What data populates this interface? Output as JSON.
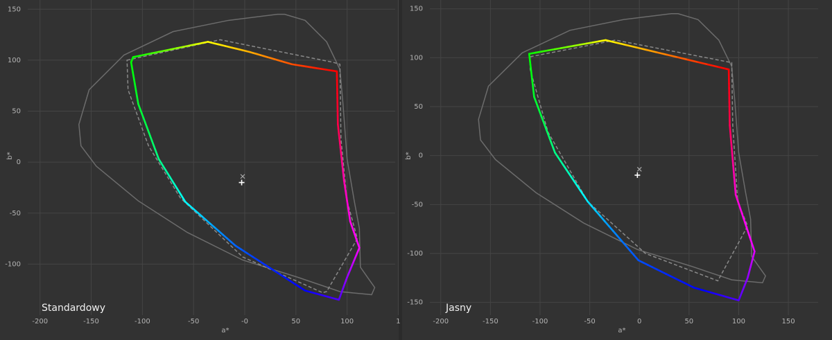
{
  "chart_data": [
    {
      "type": "gamut",
      "title": "Standardowy",
      "xlabel": "a*",
      "ylabel": "b*",
      "xlim": [
        -212,
        147
      ],
      "ylim": [
        -150,
        159
      ],
      "grid": true,
      "xticks": [
        -200,
        -150,
        -100,
        -50,
        {
          "value": 0,
          "label": "-0"
        },
        50,
        100,
        {
          "value": 150,
          "label": "1"
        }
      ],
      "yticks": [
        -100,
        -50,
        0,
        50,
        100,
        150
      ],
      "series": [
        {
          "style": "solid",
          "color": "#6c6c6c",
          "closed": true,
          "x": [
            32,
            -16,
            -70,
            -118,
            -152,
            -162,
            -160,
            -145,
            -104,
            -56,
            -2,
            52,
            93,
            124,
            127,
            120,
            113,
            112,
            107,
            100,
            96,
            93,
            80,
            59,
            39
          ],
          "values": [
            145,
            139,
            128,
            105,
            71,
            37,
            16,
            -4,
            -38,
            -69,
            -96,
            -113,
            -127,
            -130,
            -123,
            -113,
            -103,
            -65,
            -38,
            3,
            57,
            91,
            118,
            139,
            145
          ]
        },
        {
          "style": "dashed",
          "color": "#8a8a8a",
          "closed": true,
          "x": [
            -115,
            -24,
            86,
            93,
            94,
            100,
            110,
            80,
            76,
            -2,
            -63,
            -94,
            -114
          ],
          "values": [
            100,
            120,
            98,
            96,
            23,
            -38,
            -75,
            -127,
            -128,
            -93,
            -35,
            16,
            71
          ]
        },
        {
          "style": "hue",
          "closed": true,
          "x": [
            -109,
            -36,
            5,
            46,
            90,
            91,
            97,
            103,
            112,
            100,
            92,
            59,
            -9,
            -58,
            -84,
            -104,
            -111
          ],
          "values": [
            103,
            118,
            108,
            96,
            89,
            37,
            -18,
            -58,
            -84,
            -113,
            -135,
            -126,
            -82,
            -39,
            3,
            57,
            98
          ]
        }
      ],
      "markers": [
        {
          "symbol": "plus",
          "x": -3,
          "y": -20
        },
        {
          "symbol": "cross",
          "x": -2,
          "y": -14
        }
      ]
    },
    {
      "type": "gamut",
      "title": "Jasny",
      "xlabel": "a*",
      "ylabel": "b*",
      "xlim": [
        -211,
        180
      ],
      "ylim": [
        -163,
        159
      ],
      "grid": true,
      "xticks": [
        -200,
        -150,
        -100,
        -50,
        0,
        50,
        100,
        150
      ],
      "yticks": [
        -150,
        -100,
        -50,
        0,
        50,
        100,
        150
      ],
      "series": [
        {
          "style": "solid",
          "color": "#6c6c6c",
          "closed": true,
          "x": [
            32,
            -16,
            -70,
            -118,
            -152,
            -162,
            -160,
            -145,
            -104,
            -56,
            -2,
            52,
            93,
            124,
            127,
            120,
            113,
            112,
            107,
            100,
            96,
            93,
            80,
            59,
            39
          ],
          "values": [
            145,
            139,
            128,
            105,
            71,
            37,
            16,
            -4,
            -38,
            -69,
            -96,
            -113,
            -127,
            -130,
            -123,
            -113,
            -103,
            -65,
            -38,
            3,
            57,
            91,
            118,
            139,
            145
          ]
        },
        {
          "style": "dashed",
          "color": "#8a8a8a",
          "closed": true,
          "x": [
            -110,
            -24,
            93,
            94,
            99,
            109,
            79,
            6,
            -52,
            -92,
            -110
          ],
          "values": [
            101,
            118,
            95,
            31,
            -47,
            -72,
            -128,
            -100,
            -47,
            24,
            88
          ]
        },
        {
          "style": "hue",
          "closed": true,
          "x": [
            -111,
            -34,
            90,
            91,
            97,
            116,
            109,
            100,
            55,
            -1,
            -52,
            -85,
            -106
          ],
          "values": [
            104,
            118,
            88,
            31,
            -40,
            -98,
            -125,
            -148,
            -135,
            -107,
            -47,
            3,
            60
          ]
        }
      ],
      "markers": [
        {
          "symbol": "plus",
          "x": -2,
          "y": -20
        },
        {
          "symbol": "cross",
          "x": 0,
          "y": -14
        }
      ]
    }
  ]
}
